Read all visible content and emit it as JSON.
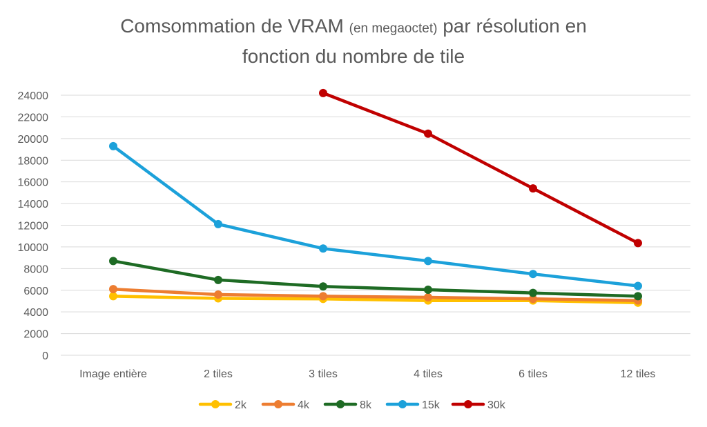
{
  "chart_data": {
    "type": "line",
    "title_main": "Comsommation de VRAM",
    "title_small": "(en megaoctet)",
    "title_rest": "par résolution en",
    "title_line2": "fonction du nombre de tile",
    "categories": [
      "Image entière",
      "2 tiles",
      "3 tiles",
      "4 tiles",
      "6 tiles",
      "12 tiles"
    ],
    "ylim": [
      0,
      24000
    ],
    "yticks": [
      0,
      2000,
      4000,
      6000,
      8000,
      10000,
      12000,
      14000,
      16000,
      18000,
      20000,
      22000,
      24000
    ],
    "grid": true,
    "legend_position": "bottom",
    "series": [
      {
        "name": "2k",
        "color": "#FFC000",
        "values": [
          5450,
          5250,
          5200,
          5050,
          5050,
          4850
        ]
      },
      {
        "name": "4k",
        "color": "#ED7D31",
        "values": [
          6100,
          5600,
          5450,
          5350,
          5200,
          5050
        ]
      },
      {
        "name": "8k",
        "color": "#1E6B24",
        "values": [
          8700,
          6950,
          6350,
          6050,
          5750,
          5450
        ]
      },
      {
        "name": "15k",
        "color": "#1CA1DA",
        "values": [
          19300,
          12100,
          9850,
          8700,
          7500,
          6400
        ]
      },
      {
        "name": "30k",
        "color": "#C00000",
        "values": [
          null,
          null,
          24200,
          20450,
          15400,
          10350
        ]
      }
    ]
  }
}
